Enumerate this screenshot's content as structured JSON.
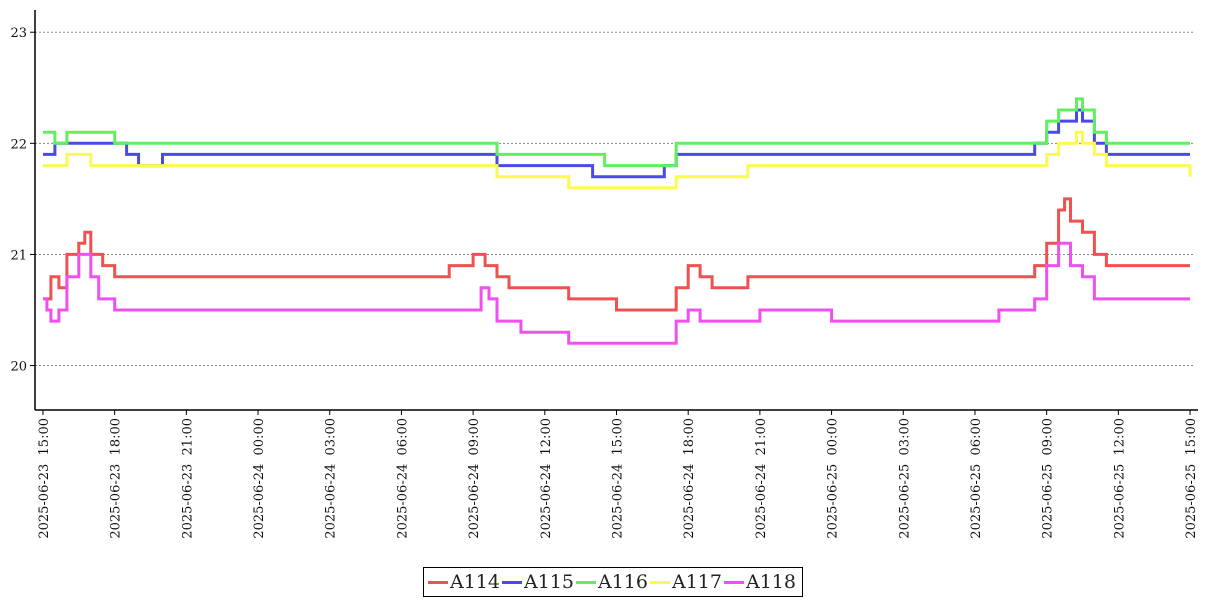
{
  "chart_data": {
    "type": "line",
    "title": "",
    "xlabel": "",
    "ylabel": "",
    "ylim": [
      19.6,
      23.2
    ],
    "yticks": [
      20,
      21,
      22,
      23
    ],
    "xlim": [
      "2025-06-23 14:40",
      "2025-06-25 15:20"
    ],
    "xticks": [
      "2025-06-23 15:00",
      "2025-06-23 18:00",
      "2025-06-23 21:00",
      "2025-06-24 00:00",
      "2025-06-24 03:00",
      "2025-06-24 06:00",
      "2025-06-24 09:00",
      "2025-06-24 12:00",
      "2025-06-24 15:00",
      "2025-06-24 18:00",
      "2025-06-24 21:00",
      "2025-06-25 00:00",
      "2025-06-25 03:00",
      "2025-06-25 06:00",
      "2025-06-25 09:00",
      "2025-06-25 12:00",
      "2025-06-25 15:00"
    ],
    "grid": "horizontal dashed",
    "legend_position": "bottom-center",
    "series": [
      {
        "name": "A114",
        "color": "#f05050",
        "points": [
          [
            "2025-06-23 15:00",
            20.6
          ],
          [
            "2025-06-23 15:20",
            20.8
          ],
          [
            "2025-06-23 15:40",
            20.7
          ],
          [
            "2025-06-23 16:00",
            21.0
          ],
          [
            "2025-06-23 16:30",
            21.1
          ],
          [
            "2025-06-23 16:45",
            21.2
          ],
          [
            "2025-06-23 17:00",
            21.0
          ],
          [
            "2025-06-23 17:30",
            20.9
          ],
          [
            "2025-06-23 18:00",
            20.8
          ],
          [
            "2025-06-24 08:00",
            20.9
          ],
          [
            "2025-06-24 09:00",
            21.0
          ],
          [
            "2025-06-24 09:30",
            20.9
          ],
          [
            "2025-06-24 10:00",
            20.8
          ],
          [
            "2025-06-24 10:30",
            20.7
          ],
          [
            "2025-06-24 12:00",
            20.7
          ],
          [
            "2025-06-24 13:00",
            20.6
          ],
          [
            "2025-06-24 14:30",
            20.6
          ],
          [
            "2025-06-24 15:00",
            20.5
          ],
          [
            "2025-06-24 17:00",
            20.5
          ],
          [
            "2025-06-24 17:30",
            20.7
          ],
          [
            "2025-06-24 18:00",
            20.9
          ],
          [
            "2025-06-24 18:30",
            20.8
          ],
          [
            "2025-06-24 19:00",
            20.7
          ],
          [
            "2025-06-24 20:00",
            20.7
          ],
          [
            "2025-06-24 20:30",
            20.8
          ],
          [
            "2025-06-25 08:00",
            20.8
          ],
          [
            "2025-06-25 08:30",
            20.9
          ],
          [
            "2025-06-25 09:00",
            21.1
          ],
          [
            "2025-06-25 09:30",
            21.4
          ],
          [
            "2025-06-25 09:45",
            21.5
          ],
          [
            "2025-06-25 10:00",
            21.3
          ],
          [
            "2025-06-25 10:30",
            21.2
          ],
          [
            "2025-06-25 11:00",
            21.0
          ],
          [
            "2025-06-25 11:30",
            20.9
          ],
          [
            "2025-06-25 15:00",
            20.9
          ]
        ]
      },
      {
        "name": "A115",
        "color": "#4a4ae6",
        "points": [
          [
            "2025-06-23 15:00",
            21.9
          ],
          [
            "2025-06-23 15:30",
            22.0
          ],
          [
            "2025-06-23 18:00",
            22.0
          ],
          [
            "2025-06-23 18:30",
            21.9
          ],
          [
            "2025-06-23 19:00",
            21.8
          ],
          [
            "2025-06-23 20:00",
            21.9
          ],
          [
            "2025-06-24 09:30",
            21.9
          ],
          [
            "2025-06-24 10:00",
            21.8
          ],
          [
            "2025-06-24 13:00",
            21.8
          ],
          [
            "2025-06-24 14:00",
            21.7
          ],
          [
            "2025-06-24 15:00",
            21.7
          ],
          [
            "2025-06-24 16:00",
            21.7
          ],
          [
            "2025-06-24 17:00",
            21.8
          ],
          [
            "2025-06-24 17:30",
            21.9
          ],
          [
            "2025-06-24 19:00",
            21.9
          ],
          [
            "2025-06-25 08:00",
            21.9
          ],
          [
            "2025-06-25 08:30",
            22.0
          ],
          [
            "2025-06-25 09:00",
            22.1
          ],
          [
            "2025-06-25 09:30",
            22.2
          ],
          [
            "2025-06-25 10:00",
            22.2
          ],
          [
            "2025-06-25 10:15",
            22.3
          ],
          [
            "2025-06-25 10:30",
            22.2
          ],
          [
            "2025-06-25 11:00",
            22.0
          ],
          [
            "2025-06-25 11:30",
            21.9
          ],
          [
            "2025-06-25 15:00",
            21.9
          ]
        ]
      },
      {
        "name": "A116",
        "color": "#5ef05e",
        "points": [
          [
            "2025-06-23 15:00",
            22.1
          ],
          [
            "2025-06-23 15:30",
            22.0
          ],
          [
            "2025-06-23 16:00",
            22.1
          ],
          [
            "2025-06-23 17:30",
            22.1
          ],
          [
            "2025-06-23 18:00",
            22.0
          ],
          [
            "2025-06-24 09:30",
            22.0
          ],
          [
            "2025-06-24 10:00",
            21.9
          ],
          [
            "2025-06-24 14:00",
            21.9
          ],
          [
            "2025-06-24 14:30",
            21.8
          ],
          [
            "2025-06-24 17:00",
            21.8
          ],
          [
            "2025-06-24 17:30",
            22.0
          ],
          [
            "2025-06-25 08:30",
            22.0
          ],
          [
            "2025-06-25 09:00",
            22.2
          ],
          [
            "2025-06-25 09:30",
            22.3
          ],
          [
            "2025-06-25 10:15",
            22.4
          ],
          [
            "2025-06-25 10:30",
            22.3
          ],
          [
            "2025-06-25 11:00",
            22.1
          ],
          [
            "2025-06-25 11:30",
            22.0
          ],
          [
            "2025-06-25 15:00",
            22.0
          ]
        ]
      },
      {
        "name": "A117",
        "color": "#fafa50",
        "points": [
          [
            "2025-06-23 15:00",
            21.8
          ],
          [
            "2025-06-23 15:30",
            21.8
          ],
          [
            "2025-06-23 16:00",
            21.9
          ],
          [
            "2025-06-23 16:30",
            21.9
          ],
          [
            "2025-06-23 17:00",
            21.8
          ],
          [
            "2025-06-24 09:30",
            21.8
          ],
          [
            "2025-06-24 10:00",
            21.7
          ],
          [
            "2025-06-24 12:00",
            21.7
          ],
          [
            "2025-06-24 13:00",
            21.6
          ],
          [
            "2025-06-24 17:00",
            21.6
          ],
          [
            "2025-06-24 17:30",
            21.7
          ],
          [
            "2025-06-24 20:00",
            21.7
          ],
          [
            "2025-06-24 20:30",
            21.8
          ],
          [
            "2025-06-25 09:00",
            21.9
          ],
          [
            "2025-06-25 09:30",
            22.0
          ],
          [
            "2025-06-25 10:15",
            22.1
          ],
          [
            "2025-06-25 10:30",
            22.0
          ],
          [
            "2025-06-25 11:00",
            21.9
          ],
          [
            "2025-06-25 11:30",
            21.8
          ],
          [
            "2025-06-25 14:30",
            21.8
          ],
          [
            "2025-06-25 15:00",
            21.7
          ]
        ]
      },
      {
        "name": "A118",
        "color": "#f050f0",
        "points": [
          [
            "2025-06-23 15:00",
            20.6
          ],
          [
            "2025-06-23 15:10",
            20.5
          ],
          [
            "2025-06-23 15:20",
            20.4
          ],
          [
            "2025-06-23 15:40",
            20.5
          ],
          [
            "2025-06-23 16:00",
            20.8
          ],
          [
            "2025-06-23 16:30",
            21.0
          ],
          [
            "2025-06-23 17:00",
            20.8
          ],
          [
            "2025-06-23 17:20",
            20.6
          ],
          [
            "2025-06-23 18:00",
            20.5
          ],
          [
            "2025-06-24 09:00",
            20.5
          ],
          [
            "2025-06-24 09:20",
            20.7
          ],
          [
            "2025-06-24 09:40",
            20.6
          ],
          [
            "2025-06-24 10:00",
            20.4
          ],
          [
            "2025-06-24 11:00",
            20.3
          ],
          [
            "2025-06-24 12:00",
            20.3
          ],
          [
            "2025-06-24 13:00",
            20.2
          ],
          [
            "2025-06-24 17:00",
            20.2
          ],
          [
            "2025-06-24 17:30",
            20.4
          ],
          [
            "2025-06-24 18:00",
            20.5
          ],
          [
            "2025-06-24 18:30",
            20.4
          ],
          [
            "2025-06-24 21:00",
            20.5
          ],
          [
            "2025-06-25 00:00",
            20.4
          ],
          [
            "2025-06-25 06:00",
            20.4
          ],
          [
            "2025-06-25 07:00",
            20.5
          ],
          [
            "2025-06-25 08:30",
            20.6
          ],
          [
            "2025-06-25 09:00",
            20.9
          ],
          [
            "2025-06-25 09:30",
            21.1
          ],
          [
            "2025-06-25 10:00",
            20.9
          ],
          [
            "2025-06-25 10:30",
            20.8
          ],
          [
            "2025-06-25 11:00",
            20.6
          ],
          [
            "2025-06-25 15:00",
            20.6
          ]
        ]
      }
    ]
  }
}
